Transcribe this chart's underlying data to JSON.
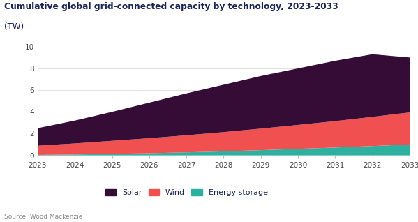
{
  "title_line1": "Cumulative global grid-connected capacity by technology, 2023-2033",
  "title_line2": "(TW)",
  "source": "Source: Wood Mackenzie",
  "years": [
    2023,
    2024,
    2025,
    2026,
    2027,
    2028,
    2029,
    2030,
    2031,
    2032,
    2033
  ],
  "energy_storage": [
    0.04,
    0.08,
    0.14,
    0.2,
    0.28,
    0.37,
    0.48,
    0.6,
    0.72,
    0.86,
    1.0
  ],
  "wind": [
    0.85,
    1.02,
    1.2,
    1.38,
    1.57,
    1.77,
    1.98,
    2.2,
    2.43,
    2.68,
    2.95
  ],
  "solar": [
    1.61,
    2.1,
    2.66,
    3.27,
    3.85,
    4.36,
    4.84,
    5.2,
    5.55,
    5.76,
    5.05
  ],
  "colors": {
    "energy_storage": "#2db0a0",
    "wind": "#f05050",
    "solar": "#350c35"
  },
  "ylim": [
    0,
    10
  ],
  "yticks": [
    0,
    2,
    4,
    6,
    8,
    10
  ],
  "background_color": "#ffffff",
  "title_color": "#1a2456",
  "tick_color": "#444444"
}
